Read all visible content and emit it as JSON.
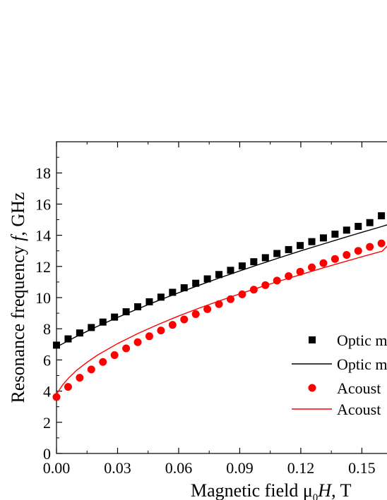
{
  "chart_data": {
    "type": "scatter",
    "xlabel_main": "Magnetic field μ",
    "xlabel_sub": "0",
    "xlabel_var": "H",
    "xlabel_unit": ", T",
    "ylabel_main": "Resonance frequency ",
    "ylabel_var": "f",
    "ylabel_unit": ", GHz",
    "xlim": [
      0.0,
      0.1665
    ],
    "ylim": [
      0,
      20
    ],
    "x_ticks": [
      0.0,
      0.03,
      0.06,
      0.09,
      0.12,
      0.15
    ],
    "x_tick_labels": [
      "0.00",
      "0.03",
      "0.06",
      "0.09",
      "0.12",
      "0.15"
    ],
    "y_ticks": [
      0,
      2,
      4,
      6,
      8,
      10,
      12,
      14,
      16,
      18
    ],
    "y_tick_labels": [
      "0",
      "2",
      "4",
      "6",
      "8",
      "10",
      "12",
      "14",
      "16",
      "18"
    ],
    "grid": false,
    "legend_position": "bottom-right",
    "legend": [
      {
        "label": "Optic m",
        "marker": "square",
        "color": "#000000"
      },
      {
        "label": "Optic m",
        "marker": "line",
        "color": "#000000"
      },
      {
        "label": "Acoust",
        "marker": "circle",
        "color": "#ff0000"
      },
      {
        "label": "Acoust",
        "marker": "line",
        "color": "#ff0000"
      }
    ],
    "series": [
      {
        "kind": "points",
        "marker": "square",
        "color": "#000000",
        "x": [
          0.0,
          0.0057,
          0.0114,
          0.0171,
          0.0228,
          0.0285,
          0.0342,
          0.0399,
          0.0456,
          0.0513,
          0.057,
          0.0627,
          0.0684,
          0.0741,
          0.0798,
          0.0855,
          0.0912,
          0.0969,
          0.1026,
          0.1083,
          0.114,
          0.1197,
          0.1254,
          0.1311,
          0.1368,
          0.1425,
          0.1482,
          0.1539,
          0.1596
        ],
        "y": [
          6.95,
          7.35,
          7.73,
          8.08,
          8.43,
          8.75,
          9.09,
          9.41,
          9.73,
          10.03,
          10.34,
          10.63,
          10.92,
          11.2,
          11.48,
          11.75,
          12.03,
          12.3,
          12.56,
          12.83,
          13.08,
          13.34,
          13.59,
          13.83,
          14.07,
          14.33,
          14.57,
          14.81,
          15.25
        ]
      },
      {
        "kind": "line",
        "color": "#000000",
        "x": [
          0.0,
          0.01,
          0.02,
          0.03,
          0.04,
          0.05,
          0.06,
          0.07,
          0.08,
          0.09,
          0.1,
          0.11,
          0.12,
          0.13,
          0.14,
          0.15,
          0.16,
          0.1665
        ],
        "y": [
          6.83,
          7.52,
          8.15,
          8.73,
          9.28,
          9.81,
          10.31,
          10.79,
          11.26,
          11.71,
          12.15,
          12.58,
          13.0,
          13.4,
          13.8,
          14.19,
          14.57,
          14.84
        ]
      },
      {
        "kind": "points",
        "marker": "circle",
        "color": "#ff0000",
        "x": [
          0.0,
          0.0057,
          0.0114,
          0.0171,
          0.0228,
          0.0285,
          0.0342,
          0.0399,
          0.0456,
          0.0513,
          0.057,
          0.0627,
          0.0684,
          0.0741,
          0.0798,
          0.0855,
          0.0912,
          0.0969,
          0.1026,
          0.1083,
          0.114,
          0.1197,
          0.1254,
          0.1311,
          0.1368,
          0.1425,
          0.1482,
          0.1539,
          0.1596
        ],
        "y": [
          3.62,
          4.27,
          4.86,
          5.39,
          5.87,
          6.31,
          6.74,
          7.14,
          7.52,
          7.89,
          8.25,
          8.6,
          8.94,
          9.26,
          9.58,
          9.9,
          10.21,
          10.51,
          10.8,
          11.09,
          11.38,
          11.66,
          11.94,
          12.21,
          12.48,
          12.74,
          13.0,
          13.26,
          13.48
        ]
      },
      {
        "kind": "line",
        "color": "#ff0000",
        "x": [
          0.0,
          0.003,
          0.006,
          0.01,
          0.015,
          0.02,
          0.03,
          0.04,
          0.05,
          0.06,
          0.07,
          0.08,
          0.09,
          0.1,
          0.11,
          0.12,
          0.13,
          0.14,
          0.15,
          0.16,
          0.1665
        ],
        "y": [
          3.8,
          4.4,
          4.85,
          5.35,
          5.85,
          6.3,
          7.05,
          7.7,
          8.28,
          8.82,
          9.32,
          9.79,
          10.24,
          10.67,
          11.08,
          11.48,
          11.87,
          12.25,
          12.62,
          12.98,
          13.85
        ]
      }
    ]
  }
}
